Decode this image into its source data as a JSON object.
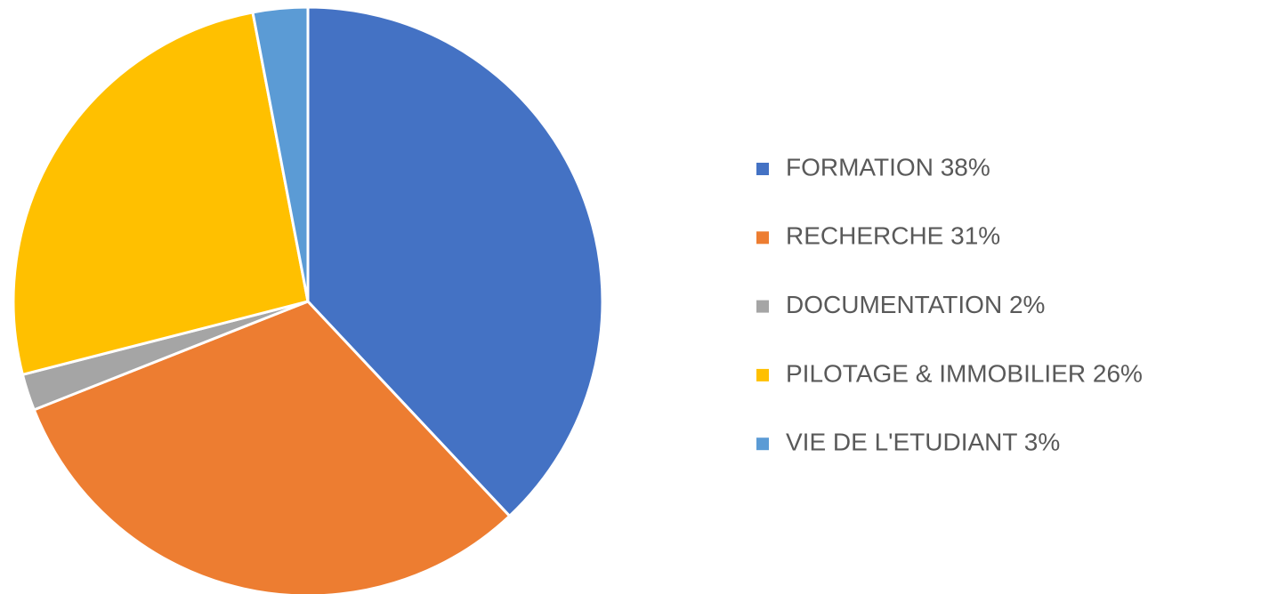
{
  "chart_data": {
    "type": "pie",
    "categories": [
      "FORMATION 38%",
      "RECHERCHE 31%",
      "DOCUMENTATION 2%",
      "PILOTAGE & IMMOBILIER 26%",
      "VIE DE L'ETUDIANT 3%"
    ],
    "values": [
      38,
      31,
      2,
      26,
      3
    ],
    "colors": [
      "#4472c4",
      "#ed7d31",
      "#a5a5a5",
      "#ffc000",
      "#5b9bd5"
    ],
    "legend": "right"
  }
}
